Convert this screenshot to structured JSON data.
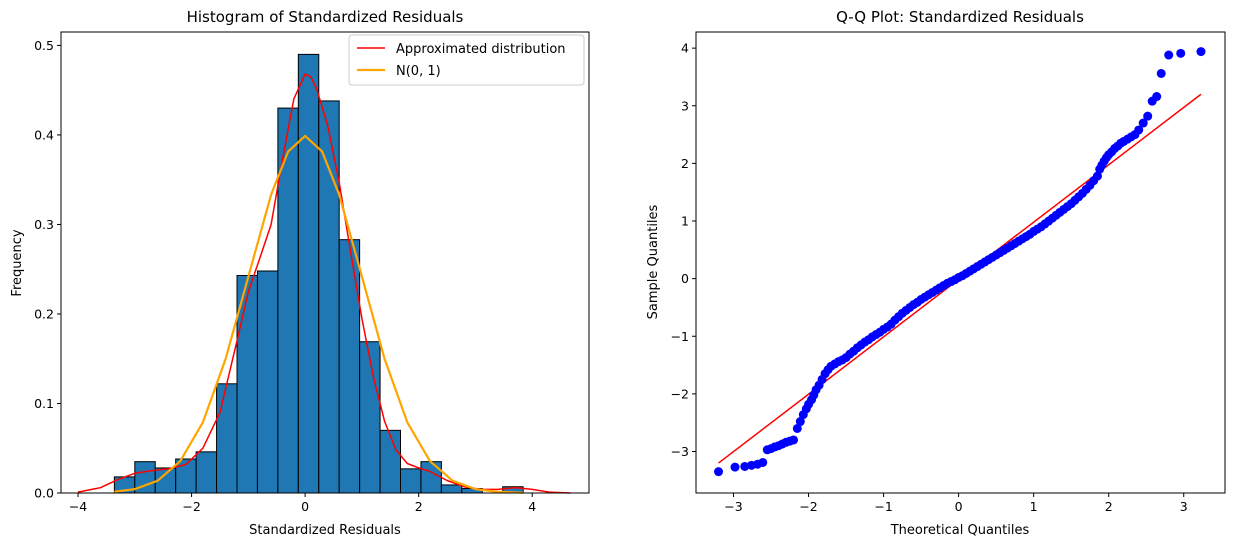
{
  "chart_data": [
    {
      "type": "bar",
      "title": "Histogram of Standardized Residuals",
      "xlabel": "Standardized Residuals",
      "ylabel": "Frequency",
      "xlim": [
        -4.3,
        5.0
      ],
      "ylim": [
        0,
        0.515
      ],
      "xticks": [
        -4,
        -2,
        0,
        2,
        4
      ],
      "xtick_labels": [
        "−4",
        "−2",
        "0",
        "2",
        "4"
      ],
      "yticks": [
        0.0,
        0.1,
        0.2,
        0.3,
        0.4,
        0.5
      ],
      "ytick_labels": [
        "0.0",
        "0.1",
        "0.2",
        "0.3",
        "0.4",
        "0.5"
      ],
      "grid": false,
      "legend_position": "top-right",
      "bar_color": "#1f77b4",
      "bins": [
        {
          "left": -3.36,
          "right": -3.0,
          "value": 0.018
        },
        {
          "left": -3.0,
          "right": -2.64,
          "value": 0.035
        },
        {
          "left": -2.64,
          "right": -2.28,
          "value": 0.028
        },
        {
          "left": -2.28,
          "right": -1.92,
          "value": 0.038
        },
        {
          "left": -1.92,
          "right": -1.56,
          "value": 0.046
        },
        {
          "left": -1.56,
          "right": -1.2,
          "value": 0.122
        },
        {
          "left": -1.2,
          "right": -0.84,
          "value": 0.243
        },
        {
          "left": -0.84,
          "right": -0.48,
          "value": 0.248
        },
        {
          "left": -0.48,
          "right": -0.12,
          "value": 0.43
        },
        {
          "left": -0.12,
          "right": 0.24,
          "value": 0.49
        },
        {
          "left": 0.24,
          "right": 0.6,
          "value": 0.438
        },
        {
          "left": 0.6,
          "right": 0.96,
          "value": 0.283
        },
        {
          "left": 0.96,
          "right": 1.32,
          "value": 0.169
        },
        {
          "left": 1.32,
          "right": 1.68,
          "value": 0.07
        },
        {
          "left": 1.68,
          "right": 2.04,
          "value": 0.027
        },
        {
          "left": 2.04,
          "right": 2.4,
          "value": 0.035
        },
        {
          "left": 2.4,
          "right": 2.76,
          "value": 0.009
        },
        {
          "left": 2.76,
          "right": 3.12,
          "value": 0.005
        },
        {
          "left": 3.12,
          "right": 3.48,
          "value": 0.0
        },
        {
          "left": 3.48,
          "right": 3.84,
          "value": 0.007
        }
      ],
      "series": [
        {
          "name": "Approximated distribution",
          "color": "#ff0000",
          "x": [
            -4.0,
            -3.6,
            -3.3,
            -3.0,
            -2.7,
            -2.4,
            -2.1,
            -1.8,
            -1.5,
            -1.2,
            -1.0,
            -0.8,
            -0.6,
            -0.4,
            -0.2,
            0.0,
            0.1,
            0.2,
            0.4,
            0.6,
            0.8,
            1.0,
            1.2,
            1.4,
            1.6,
            1.8,
            2.0,
            2.2,
            2.5,
            2.8,
            3.1,
            3.4,
            3.7,
            4.0,
            4.3,
            4.67
          ],
          "y": [
            0.001,
            0.006,
            0.015,
            0.022,
            0.025,
            0.027,
            0.032,
            0.05,
            0.09,
            0.17,
            0.225,
            0.262,
            0.3,
            0.372,
            0.44,
            0.468,
            0.465,
            0.452,
            0.41,
            0.347,
            0.27,
            0.195,
            0.13,
            0.08,
            0.048,
            0.033,
            0.028,
            0.024,
            0.014,
            0.007,
            0.004,
            0.004,
            0.006,
            0.004,
            0.001,
            0.0
          ]
        },
        {
          "name": "N(0, 1)",
          "color": "#ffa500",
          "x": [
            -3.36,
            -3.0,
            -2.6,
            -2.2,
            -1.8,
            -1.4,
            -1.0,
            -0.6,
            -0.3,
            0.0,
            0.3,
            0.6,
            1.0,
            1.4,
            1.8,
            2.2,
            2.6,
            3.0,
            3.4,
            3.84
          ],
          "y": [
            0.0014,
            0.0044,
            0.0136,
            0.0355,
            0.079,
            0.1497,
            0.242,
            0.3332,
            0.3814,
            0.3989,
            0.3814,
            0.3332,
            0.242,
            0.1497,
            0.079,
            0.0355,
            0.0136,
            0.0044,
            0.0012,
            0.0003
          ]
        }
      ]
    },
    {
      "type": "scatter",
      "title": "Q-Q Plot: Standardized Residuals",
      "xlabel": "Theoretical Quantiles",
      "ylabel": "Sample Quantiles",
      "xlim": [
        -3.5,
        3.55
      ],
      "ylim": [
        -3.72,
        4.28
      ],
      "xticks": [
        -3,
        -2,
        -1,
        0,
        1,
        2,
        3
      ],
      "xtick_labels": [
        "−3",
        "−2",
        "−1",
        "0",
        "1",
        "2",
        "3"
      ],
      "yticks": [
        -3,
        -2,
        -1,
        0,
        1,
        2,
        3,
        4
      ],
      "ytick_labels": [
        "−3",
        "−2",
        "−1",
        "0",
        "1",
        "2",
        "3",
        "4"
      ],
      "grid": false,
      "point_color": "#0000ff",
      "line_color": "#ff0000",
      "reference_line": {
        "x": [
          -3.2,
          3.23
        ],
        "y": [
          -3.2,
          3.2
        ]
      },
      "points": {
        "x": [
          -3.2,
          -2.98,
          -2.85,
          -2.76,
          -2.68,
          -2.61,
          -2.55,
          -2.5,
          -2.45,
          -2.4,
          -2.35,
          -2.3,
          -2.25,
          -2.2,
          -2.15,
          -2.11,
          -2.07,
          -2.03,
          -2.0,
          -1.96,
          -1.93,
          -1.9,
          -1.86,
          -1.82,
          -1.78,
          -1.74,
          -1.7,
          -1.65,
          -1.6,
          -1.55,
          -1.5,
          -1.45,
          -1.4,
          -1.35,
          -1.3,
          -1.25,
          -1.2,
          -1.15,
          -1.1,
          -1.05,
          -1.0,
          -0.95,
          -0.9,
          -0.85,
          -0.8,
          -0.75,
          -0.7,
          -0.65,
          -0.6,
          -0.55,
          -0.5,
          -0.45,
          -0.4,
          -0.35,
          -0.3,
          -0.25,
          -0.2,
          -0.15,
          -0.1,
          -0.05,
          0.0,
          0.05,
          0.1,
          0.15,
          0.2,
          0.25,
          0.3,
          0.35,
          0.4,
          0.45,
          0.5,
          0.55,
          0.6,
          0.65,
          0.7,
          0.75,
          0.8,
          0.85,
          0.9,
          0.95,
          1.0,
          1.05,
          1.1,
          1.15,
          1.2,
          1.25,
          1.3,
          1.35,
          1.4,
          1.45,
          1.5,
          1.55,
          1.6,
          1.65,
          1.7,
          1.75,
          1.8,
          1.85,
          1.88,
          1.91,
          1.94,
          1.97,
          2.0,
          2.04,
          2.08,
          2.12,
          2.16,
          2.2,
          2.25,
          2.3,
          2.35,
          2.4,
          2.46,
          2.52,
          2.58,
          2.64,
          2.7,
          2.8,
          2.96,
          3.23
        ],
        "y": [
          -3.35,
          -3.27,
          -3.26,
          -3.24,
          -3.22,
          -3.19,
          -2.97,
          -2.95,
          -2.92,
          -2.9,
          -2.87,
          -2.84,
          -2.82,
          -2.8,
          -2.6,
          -2.48,
          -2.36,
          -2.26,
          -2.18,
          -2.1,
          -2.02,
          -1.93,
          -1.85,
          -1.75,
          -1.65,
          -1.58,
          -1.52,
          -1.48,
          -1.44,
          -1.41,
          -1.37,
          -1.31,
          -1.26,
          -1.2,
          -1.15,
          -1.1,
          -1.06,
          -1.01,
          -0.97,
          -0.93,
          -0.88,
          -0.84,
          -0.79,
          -0.72,
          -0.66,
          -0.6,
          -0.55,
          -0.5,
          -0.45,
          -0.41,
          -0.36,
          -0.32,
          -0.28,
          -0.24,
          -0.2,
          -0.16,
          -0.12,
          -0.08,
          -0.05,
          -0.02,
          0.02,
          0.05,
          0.09,
          0.13,
          0.17,
          0.21,
          0.25,
          0.29,
          0.33,
          0.37,
          0.41,
          0.45,
          0.49,
          0.53,
          0.57,
          0.61,
          0.65,
          0.69,
          0.73,
          0.77,
          0.82,
          0.86,
          0.9,
          0.95,
          1.0,
          1.05,
          1.1,
          1.15,
          1.2,
          1.25,
          1.3,
          1.36,
          1.42,
          1.48,
          1.55,
          1.62,
          1.7,
          1.78,
          1.9,
          1.97,
          2.04,
          2.1,
          2.15,
          2.2,
          2.26,
          2.3,
          2.35,
          2.38,
          2.42,
          2.46,
          2.5,
          2.58,
          2.7,
          2.82,
          3.08,
          3.16,
          3.56,
          3.88,
          3.91,
          3.94
        ]
      }
    }
  ]
}
